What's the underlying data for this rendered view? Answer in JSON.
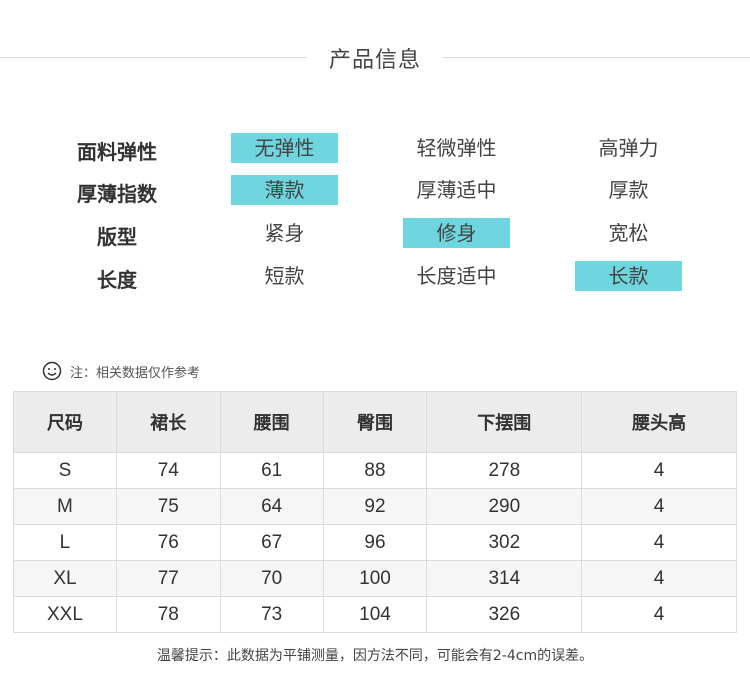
{
  "title": "产品信息",
  "attributes": [
    {
      "label": "面料弹性",
      "options": [
        "无弹性",
        "轻微弹性",
        "高弹力"
      ],
      "selected": 0
    },
    {
      "label": "厚薄指数",
      "options": [
        "薄款",
        "厚薄适中",
        "厚款"
      ],
      "selected": 0
    },
    {
      "label": "版型",
      "options": [
        "紧身",
        "修身",
        "宽松"
      ],
      "selected": 1
    },
    {
      "label": "长度",
      "options": [
        "短款",
        "长度适中",
        "长款"
      ],
      "selected": 2
    }
  ],
  "highlight_color": "#6fd5de",
  "note": "注：相关数据仅作参考",
  "note_icon": "smiley-icon",
  "table": {
    "headers": [
      "尺码",
      "裙长",
      "腰围",
      "臀围",
      "下摆围",
      "腰头高"
    ],
    "rows": [
      [
        "S",
        "74",
        "61",
        "88",
        "278",
        "4"
      ],
      [
        "M",
        "75",
        "64",
        "92",
        "290",
        "4"
      ],
      [
        "L",
        "76",
        "67",
        "96",
        "302",
        "4"
      ],
      [
        "XL",
        "77",
        "70",
        "100",
        "314",
        "4"
      ],
      [
        "XXL",
        "78",
        "73",
        "104",
        "326",
        "4"
      ]
    ]
  },
  "tip": "温馨提示：此数据为平铺测量，因方法不同，可能会有2-4cm的误差。"
}
